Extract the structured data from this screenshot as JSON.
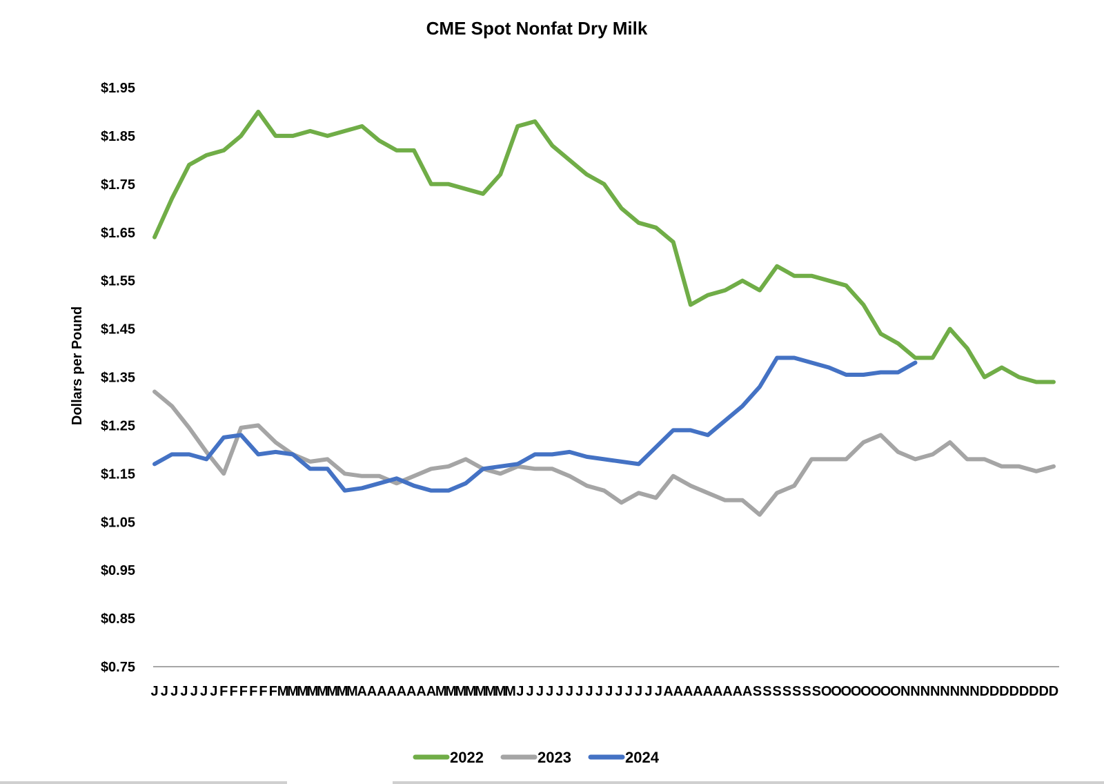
{
  "chart_data": {
    "type": "line",
    "title": "CME Spot Nonfat Dry Milk",
    "xlabel": "",
    "ylabel": "Dollars per Pound",
    "ylim": [
      0.75,
      1.95
    ],
    "yticks": [
      "$1.95",
      "$1.85",
      "$1.75",
      "$1.65",
      "$1.55",
      "$1.45",
      "$1.35",
      "$1.25",
      "$1.15",
      "$1.05",
      "$0.95",
      "$0.85",
      "$0.75"
    ],
    "ytick_values": [
      1.95,
      1.85,
      1.75,
      1.65,
      1.55,
      1.45,
      1.35,
      1.25,
      1.15,
      1.05,
      0.95,
      0.85,
      0.75
    ],
    "x_unit": "week of year (0-52)",
    "xticks": [
      "J",
      "J",
      "J",
      "J",
      "J",
      "J",
      "J",
      "F",
      "F",
      "F",
      "F",
      "F",
      "F",
      "M",
      "M",
      "M",
      "M",
      "M",
      "M",
      "M",
      "M",
      "A",
      "A",
      "A",
      "A",
      "A",
      "A",
      "A",
      "A",
      "M",
      "M",
      "M",
      "M",
      "M",
      "M",
      "M",
      "M",
      "J",
      "J",
      "J",
      "J",
      "J",
      "J",
      "J",
      "J",
      "J",
      "J",
      "J",
      "J",
      "J",
      "J",
      "J",
      "A",
      "A",
      "A",
      "A",
      "A",
      "A",
      "A",
      "A",
      "A",
      "S",
      "S",
      "S",
      "S",
      "S",
      "S",
      "S",
      "O",
      "O",
      "O",
      "O",
      "O",
      "O",
      "O",
      "O",
      "N",
      "N",
      "N",
      "N",
      "N",
      "N",
      "N",
      "N",
      "D",
      "D",
      "D",
      "D",
      "D",
      "D",
      "D",
      "D"
    ],
    "grid": false,
    "legend_position": "bottom-center",
    "series": [
      {
        "name": "2022",
        "color": "#70AD47",
        "values": [
          1.64,
          1.72,
          1.79,
          1.81,
          1.82,
          1.85,
          1.9,
          1.85,
          1.85,
          1.86,
          1.85,
          1.86,
          1.87,
          1.84,
          1.82,
          1.82,
          1.75,
          1.75,
          1.74,
          1.73,
          1.77,
          1.87,
          1.88,
          1.83,
          1.8,
          1.77,
          1.75,
          1.7,
          1.67,
          1.66,
          1.63,
          1.5,
          1.52,
          1.53,
          1.55,
          1.53,
          1.58,
          1.56,
          1.56,
          1.55,
          1.54,
          1.5,
          1.44,
          1.42,
          1.39,
          1.39,
          1.45,
          1.41,
          1.35,
          1.37,
          1.35,
          1.34,
          1.34
        ]
      },
      {
        "name": "2023",
        "color": "#A5A5A5",
        "values": [
          1.32,
          1.29,
          1.245,
          1.195,
          1.15,
          1.245,
          1.25,
          1.215,
          1.19,
          1.175,
          1.18,
          1.15,
          1.145,
          1.145,
          1.13,
          1.145,
          1.16,
          1.165,
          1.18,
          1.16,
          1.15,
          1.165,
          1.16,
          1.16,
          1.145,
          1.125,
          1.115,
          1.09,
          1.11,
          1.1,
          1.145,
          1.125,
          1.11,
          1.095,
          1.095,
          1.065,
          1.11,
          1.125,
          1.18,
          1.18,
          1.18,
          1.215,
          1.23,
          1.195,
          1.18,
          1.19,
          1.215,
          1.18,
          1.18,
          1.165,
          1.165,
          1.155,
          1.165
        ]
      },
      {
        "name": "2024",
        "color": "#4472C4",
        "values": [
          1.17,
          1.19,
          1.19,
          1.18,
          1.225,
          1.23,
          1.19,
          1.195,
          1.19,
          1.16,
          1.16,
          1.115,
          1.12,
          1.13,
          1.14,
          1.125,
          1.115,
          1.115,
          1.13,
          1.16,
          1.165,
          1.17,
          1.19,
          1.19,
          1.195,
          1.185,
          1.18,
          1.175,
          1.17,
          1.205,
          1.24,
          1.24,
          1.23,
          1.26,
          1.29,
          1.33,
          1.39,
          1.39,
          1.38,
          1.37,
          1.355,
          1.355,
          1.36,
          1.36,
          1.38
        ]
      }
    ]
  }
}
